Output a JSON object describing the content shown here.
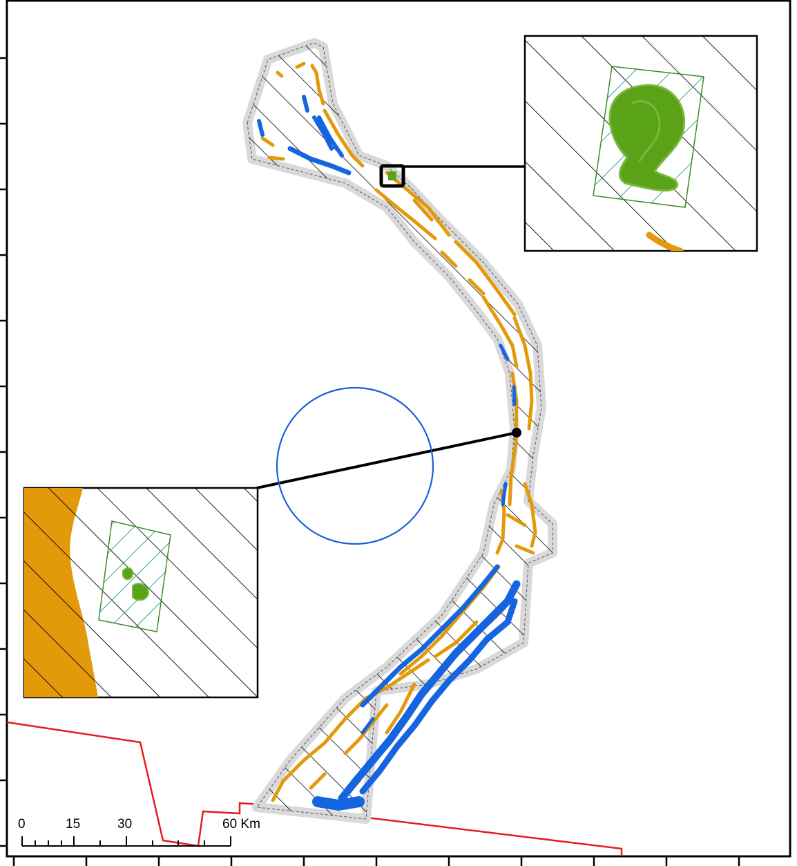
{
  "map": {
    "colors": {
      "frame": "#000000",
      "boundary_red": "#e8191c",
      "water_blue": "#1565e0",
      "sediment_orange": "#e39a0a",
      "vegetation_green": "#5aa218",
      "plot_outline_green": "#3a8a2a",
      "plot_hatch_teal": "#1a9a80",
      "circle_blue": "#1a5fd6",
      "buffer_gray": "#d9d9d9"
    },
    "scale_bar": {
      "labels": [
        "0",
        "15",
        "30",
        "60 Km"
      ]
    },
    "insets": [
      {
        "id": "inset-upper-right",
        "icon": "vegetation-patch"
      },
      {
        "id": "inset-lower-left",
        "icon": "vegetation-patch"
      }
    ]
  }
}
